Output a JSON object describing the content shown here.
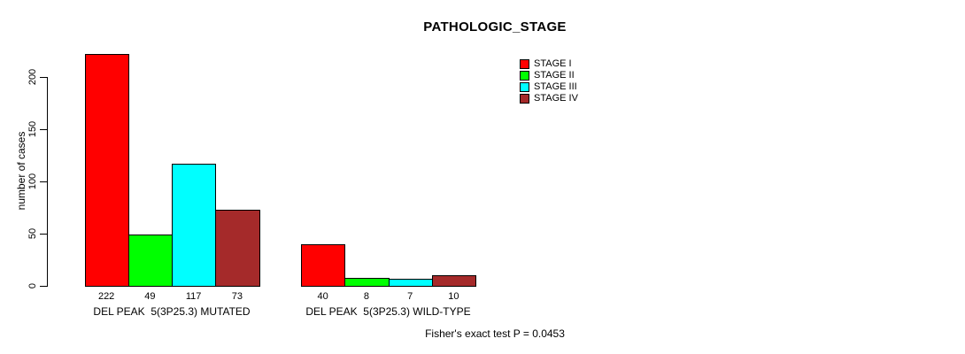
{
  "chart_data": {
    "type": "bar",
    "title": "PATHOLOGIC_STAGE",
    "ylabel": "number of cases",
    "xlabel": "",
    "yticks": [
      0,
      50,
      100,
      150,
      200
    ],
    "ylim": [
      0,
      230
    ],
    "grid": false,
    "legend_position": "top-right-inside",
    "categories": [
      "DEL PEAK  5(3P25.3) MUTATED",
      "DEL PEAK  5(3P25.3) WILD-TYPE"
    ],
    "series": [
      {
        "name": "STAGE I",
        "color": "#ff0000",
        "values": [
          222,
          40
        ]
      },
      {
        "name": "STAGE II",
        "color": "#00ff00",
        "values": [
          49,
          8
        ]
      },
      {
        "name": "STAGE III",
        "color": "#00ffff",
        "values": [
          117,
          7
        ]
      },
      {
        "name": "STAGE IV",
        "color": "#a52a2a",
        "values": [
          73,
          10
        ]
      }
    ],
    "bar_value_labels": true,
    "annotation": "Fisher's exact test P = 0.0453"
  },
  "icons": {},
  "colors": {
    "background": "#ffffff",
    "axis": "#000000",
    "text": "#000000"
  }
}
